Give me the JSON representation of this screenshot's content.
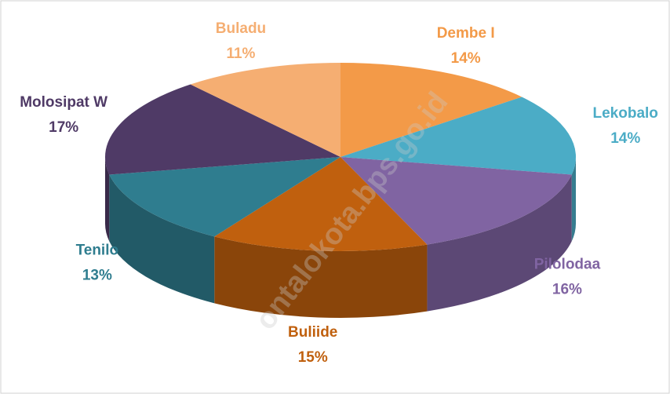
{
  "chart_data": {
    "type": "pie3d",
    "categories": [
      "Dembe I",
      "Lekobalo",
      "Pilolodaa",
      "Buliide",
      "Tenilo",
      "Molosipat W",
      "Buladu"
    ],
    "values": [
      14,
      14,
      16,
      15,
      13,
      17,
      11
    ],
    "value_labels": [
      "14%",
      "14%",
      "16%",
      "15%",
      "13%",
      "17%",
      "11%"
    ],
    "colors": [
      "#f39a48",
      "#4bacc6",
      "#8064a2",
      "#c0600e",
      "#2f7d8f",
      "#4f3a66",
      "#f5ae72"
    ],
    "watermark": "ontalokota.bps.go.id"
  }
}
